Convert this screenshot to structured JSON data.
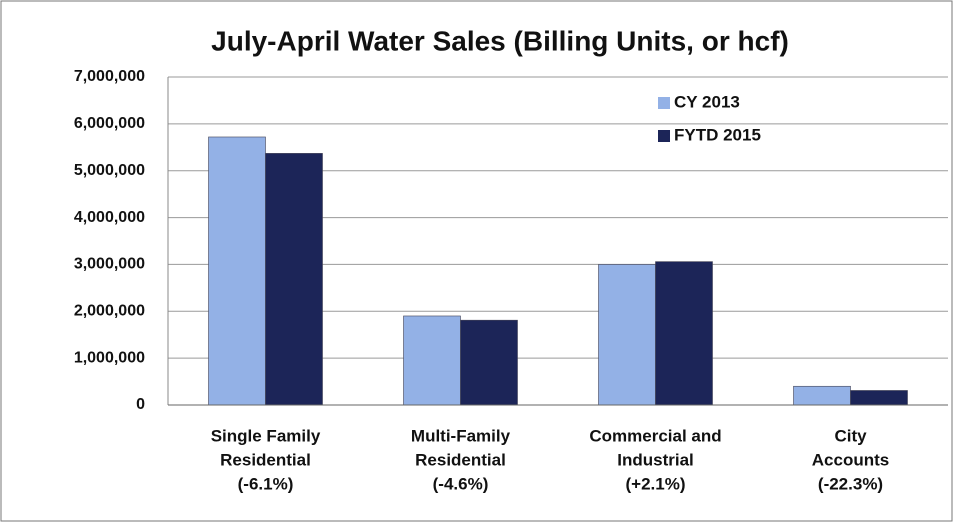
{
  "chart_data": {
    "type": "bar",
    "title": "July-April Water Sales (Billing Units, or hcf)",
    "categories": [
      [
        "Single Family",
        "Residential",
        "(-6.1%)"
      ],
      [
        "Multi-Family",
        "Residential",
        "(-4.6%)"
      ],
      [
        "Commercial and",
        "Industrial",
        "(+2.1%)"
      ],
      [
        "City",
        "Accounts",
        "(-22.3%)"
      ]
    ],
    "series": [
      {
        "name": "CY 2013",
        "color": "#93b1e6",
        "values": [
          5720000,
          1900000,
          3000000,
          400000
        ]
      },
      {
        "name": "FYTD 2015",
        "color": "#1c2558",
        "values": [
          5370000,
          1810000,
          3060000,
          310000
        ]
      }
    ],
    "ylim": [
      0,
      7000000
    ],
    "yticks": [
      0,
      {
        "value": 1000000,
        "label": "1,000,000"
      },
      {
        "value": 2000000,
        "label": "2,000,000"
      },
      {
        "value": 3000000,
        "label": "3,000,000"
      },
      {
        "value": 4000000,
        "label": "4,000,000"
      },
      {
        "value": 5000000,
        "label": "5,000,000"
      },
      {
        "value": 6000000,
        "label": "6,000,000"
      },
      {
        "value": 7000000,
        "label": "7,000,000"
      }
    ],
    "grid": true,
    "legend": "upper-right"
  }
}
